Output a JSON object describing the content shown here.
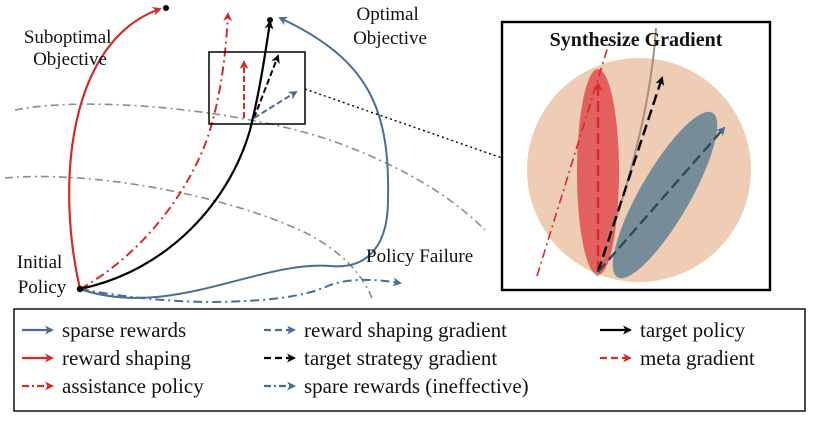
{
  "labels": {
    "suboptimal": [
      "Suboptimal",
      "Objective"
    ],
    "optimal": [
      "Optimal",
      "Objective"
    ],
    "initial": [
      "Initial",
      "Policy"
    ],
    "failure": "Policy Failure",
    "inset_title": "Synthesize Gradient"
  },
  "legend": [
    {
      "label": "sparse rewards",
      "style": "solid",
      "color": "#4a6e8f"
    },
    {
      "label": "reward shaping gradient",
      "style": "dashed",
      "color": "#4a6e8f"
    },
    {
      "label": "target policy",
      "style": "solid",
      "color": "#000000"
    },
    {
      "label": "reward shaping",
      "style": "solid",
      "color": "#d42a2a"
    },
    {
      "label": "target strategy gradient",
      "style": "dashed",
      "color": "#000000"
    },
    {
      "label": "meta gradient",
      "style": "dashed",
      "color": "#d42a2a"
    },
    {
      "label": "assistance policy",
      "style": "dash-dot",
      "color": "#d42a2a"
    },
    {
      "label": "spare rewards (ineffective)",
      "style": "dash-dot",
      "color": "#4a6e8f"
    }
  ],
  "colors": {
    "blue": "#4a6e8f",
    "red": "#d42a2a",
    "black": "#000000",
    "grey": "#8c8c8c",
    "peach": "#efcdb4",
    "red_ellipse": "#e05a5a",
    "blue_ellipse": "#6f8898",
    "tan": "#a88f78"
  }
}
